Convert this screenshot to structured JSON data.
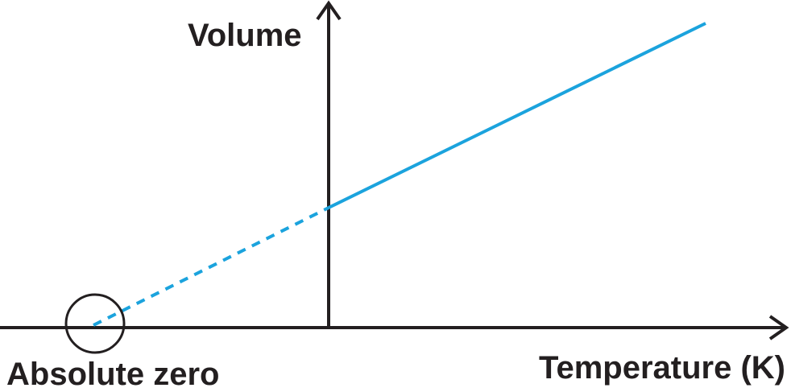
{
  "y_axis": {
    "label": "Volume"
  },
  "x_axis": {
    "label": "Temperature (K)"
  },
  "annotation": {
    "label": "Absolute zero"
  }
}
